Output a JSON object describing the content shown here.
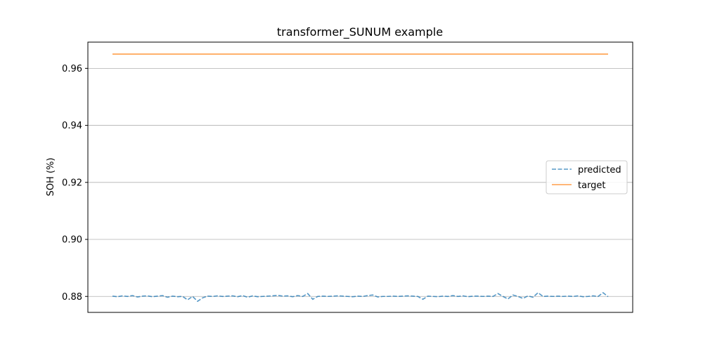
{
  "chart_data": {
    "type": "line",
    "title": "transformer_SUNUM example",
    "xlabel": "",
    "ylabel": "SOH (%)",
    "ylim": [
      0.8744,
      0.9692
    ],
    "yticks": [
      "0.88",
      "0.90",
      "0.92",
      "0.94",
      "0.96"
    ],
    "ytick_values": [
      0.88,
      0.9,
      0.92,
      0.94,
      0.96
    ],
    "grid": "y",
    "legend_position": "center-right",
    "x": [
      0,
      1,
      2,
      3,
      4,
      5,
      6,
      7,
      8,
      9,
      10,
      11,
      12,
      13,
      14,
      15,
      16,
      17,
      18,
      19,
      20,
      21,
      22,
      23,
      24,
      25,
      26,
      27,
      28,
      29,
      30,
      31,
      32,
      33,
      34,
      35,
      36,
      37,
      38,
      39,
      40,
      41,
      42,
      43,
      44,
      45,
      46,
      47,
      48,
      49,
      50,
      51,
      52,
      53,
      54,
      55,
      56,
      57,
      58,
      59,
      60,
      61,
      62,
      63,
      64,
      65,
      66,
      67,
      68,
      69,
      70,
      71,
      72,
      73,
      74,
      75,
      76,
      77,
      78,
      79,
      80,
      81,
      82,
      83,
      84,
      85,
      86,
      87,
      88,
      89,
      90,
      91,
      92,
      93,
      94,
      95,
      96,
      97,
      98,
      99
    ],
    "series": [
      {
        "name": "predicted",
        "style": "dashed",
        "color": "#1f77b4",
        "values": [
          0.8801,
          0.8799,
          0.8802,
          0.88,
          0.8803,
          0.8798,
          0.8801,
          0.8802,
          0.8799,
          0.8801,
          0.8803,
          0.8797,
          0.8801,
          0.8799,
          0.88,
          0.8788,
          0.88,
          0.8783,
          0.8795,
          0.8801,
          0.88,
          0.8802,
          0.88,
          0.8801,
          0.8802,
          0.8799,
          0.8803,
          0.8797,
          0.8802,
          0.8799,
          0.88,
          0.8801,
          0.8802,
          0.8804,
          0.8801,
          0.8802,
          0.8799,
          0.8803,
          0.88,
          0.881,
          0.879,
          0.88,
          0.8801,
          0.88,
          0.8801,
          0.8802,
          0.8801,
          0.88,
          0.8799,
          0.8801,
          0.88,
          0.8803,
          0.8805,
          0.8798,
          0.88,
          0.88,
          0.8801,
          0.88,
          0.8801,
          0.8802,
          0.8801,
          0.88,
          0.879,
          0.8801,
          0.88,
          0.8799,
          0.8801,
          0.88,
          0.8803,
          0.88,
          0.8802,
          0.8799,
          0.8801,
          0.8801,
          0.88,
          0.8801,
          0.88,
          0.881,
          0.88,
          0.8791,
          0.8805,
          0.88,
          0.8793,
          0.8802,
          0.8797,
          0.8813,
          0.88,
          0.8801,
          0.88,
          0.8801,
          0.88,
          0.8801,
          0.88,
          0.8802,
          0.8799,
          0.88,
          0.8802,
          0.88,
          0.8813,
          0.8799
        ]
      },
      {
        "name": "target",
        "style": "solid",
        "color": "#ff7f0e",
        "values": [
          0.965,
          0.965,
          0.965,
          0.965,
          0.965,
          0.965,
          0.965,
          0.965,
          0.965,
          0.965,
          0.965,
          0.965,
          0.965,
          0.965,
          0.965,
          0.965,
          0.965,
          0.965,
          0.965,
          0.965,
          0.965,
          0.965,
          0.965,
          0.965,
          0.965,
          0.965,
          0.965,
          0.965,
          0.965,
          0.965,
          0.965,
          0.965,
          0.965,
          0.965,
          0.965,
          0.965,
          0.965,
          0.965,
          0.965,
          0.965,
          0.965,
          0.965,
          0.965,
          0.965,
          0.965,
          0.965,
          0.965,
          0.965,
          0.965,
          0.965,
          0.965,
          0.965,
          0.965,
          0.965,
          0.965,
          0.965,
          0.965,
          0.965,
          0.965,
          0.965,
          0.965,
          0.965,
          0.965,
          0.965,
          0.965,
          0.965,
          0.965,
          0.965,
          0.965,
          0.965,
          0.965,
          0.965,
          0.965,
          0.965,
          0.965,
          0.965,
          0.965,
          0.965,
          0.965,
          0.965,
          0.965,
          0.965,
          0.965,
          0.965,
          0.965,
          0.965,
          0.965,
          0.965,
          0.965,
          0.965,
          0.965,
          0.965,
          0.965,
          0.965,
          0.965,
          0.965,
          0.965,
          0.965,
          0.965,
          0.965
        ]
      }
    ]
  }
}
